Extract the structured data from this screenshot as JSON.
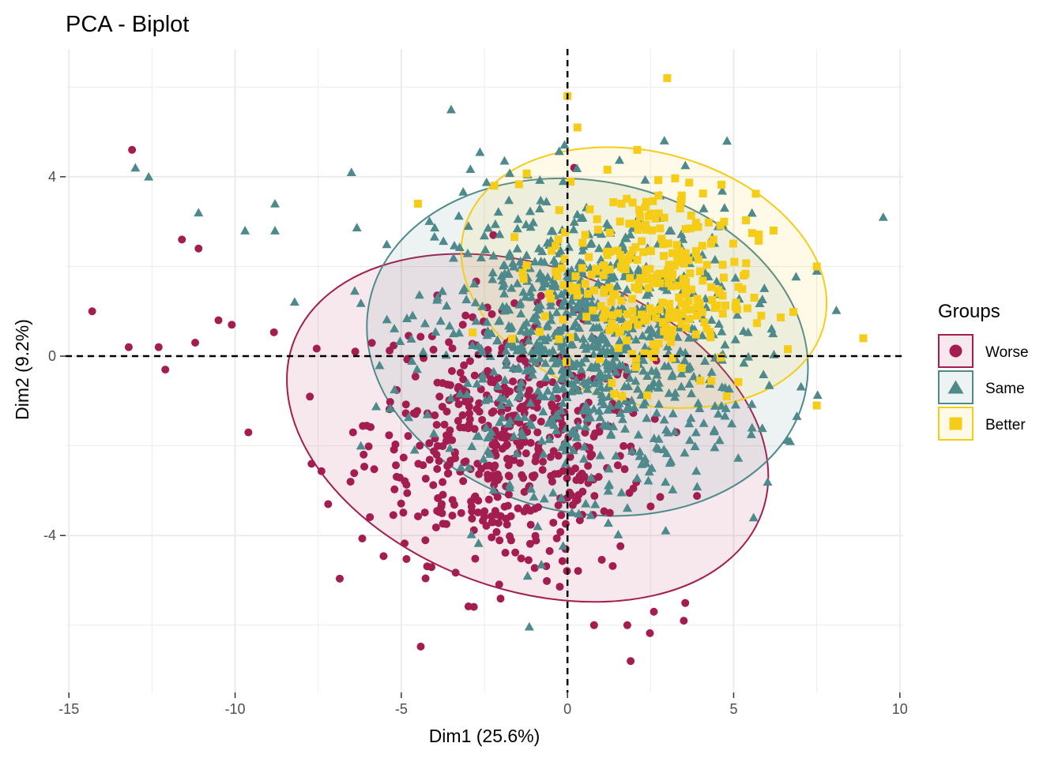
{
  "chart_data": {
    "type": "scatter",
    "title": "PCA - Biplot",
    "xlabel": "Dim1 (25.6%)",
    "ylabel": "Dim2 (9.2%)",
    "xlim": [
      -15.1,
      10.1
    ],
    "ylim": [
      -7.5,
      6.85
    ],
    "x_ticks": [
      -15,
      -10,
      -5,
      0,
      5,
      10
    ],
    "x_tick_labels": [
      "-15",
      "-10",
      "-5",
      "0",
      "5",
      "10"
    ],
    "y_ticks": [
      -4,
      0,
      4
    ],
    "y_tick_labels": [
      "-4",
      "0",
      "4"
    ],
    "reference_lines": {
      "x": 0,
      "y": 0,
      "style": "dashed"
    },
    "grid": true,
    "legend": {
      "title": "Groups",
      "position": "right",
      "entries": [
        "Worse",
        "Same",
        "Better"
      ]
    },
    "series": [
      {
        "name": "Worse",
        "marker": "circle",
        "color": "#A31D50",
        "ellipse": {
          "center": [
            -1.2,
            -1.6
          ],
          "semi_axes": [
            7.5,
            3.6
          ],
          "angle_deg": -20
        },
        "notable_points": [
          [
            -14.3,
            1.0
          ],
          [
            -13.1,
            4.6
          ],
          [
            -11.6,
            2.6
          ],
          [
            -11.1,
            2.4
          ],
          [
            -13.2,
            0.2
          ],
          [
            -12.3,
            0.2
          ],
          [
            -12.1,
            -0.3
          ],
          [
            -11.2,
            0.3
          ],
          [
            -10.5,
            0.8
          ],
          [
            -10.1,
            0.7
          ],
          [
            -9.6,
            -1.7
          ],
          [
            -7.7,
            -2.4
          ],
          [
            -7.2,
            -3.3
          ],
          [
            1.9,
            -6.8
          ],
          [
            3.5,
            -5.9
          ],
          [
            0.8,
            -6.0
          ],
          [
            1.8,
            -6.0
          ],
          [
            2.6,
            -5.7
          ],
          [
            0.2,
            4.2
          ]
        ],
        "cluster": {
          "center": [
            -1.8,
            -2.0
          ],
          "spread": [
            2.2,
            1.4
          ],
          "count": 520
        }
      },
      {
        "name": "Same",
        "marker": "triangle",
        "color": "#4E8A8B",
        "ellipse": {
          "center": [
            0.6,
            0.2
          ],
          "semi_axes": [
            6.7,
            3.7
          ],
          "angle_deg": -12
        },
        "notable_points": [
          [
            -13.0,
            4.2
          ],
          [
            -12.6,
            4.0
          ],
          [
            -11.1,
            3.2
          ],
          [
            -9.7,
            2.8
          ],
          [
            -8.8,
            3.4
          ],
          [
            -3.5,
            5.5
          ],
          [
            -8.8,
            2.8
          ],
          [
            -6.5,
            4.1
          ],
          [
            4.8,
            4.8
          ],
          [
            9.5,
            3.1
          ],
          [
            7.5,
            1.9
          ],
          [
            5.6,
            -3.6
          ],
          [
            6.7,
            -1.9
          ],
          [
            -1.2,
            -4.9
          ]
        ],
        "cluster": {
          "center": [
            0.6,
            0.3
          ],
          "spread": [
            2.4,
            1.6
          ],
          "count": 900
        }
      },
      {
        "name": "Better",
        "marker": "square",
        "color": "#F5CC18",
        "ellipse": {
          "center": [
            2.3,
            1.75
          ],
          "semi_axes": [
            5.6,
            2.8
          ],
          "angle_deg": -15
        },
        "notable_points": [
          [
            3.0,
            6.2
          ],
          [
            0.0,
            5.8
          ],
          [
            0.3,
            5.1
          ],
          [
            8.9,
            0.4
          ],
          [
            7.5,
            -1.1
          ],
          [
            6.2,
            2.8
          ],
          [
            7.5,
            2.0
          ],
          [
            -4.5,
            3.4
          ],
          [
            -2.2,
            3.8
          ],
          [
            2.1,
            4.6
          ]
        ],
        "cluster": {
          "center": [
            2.4,
            1.7
          ],
          "spread": [
            1.6,
            1.1
          ],
          "count": 300
        }
      }
    ]
  }
}
